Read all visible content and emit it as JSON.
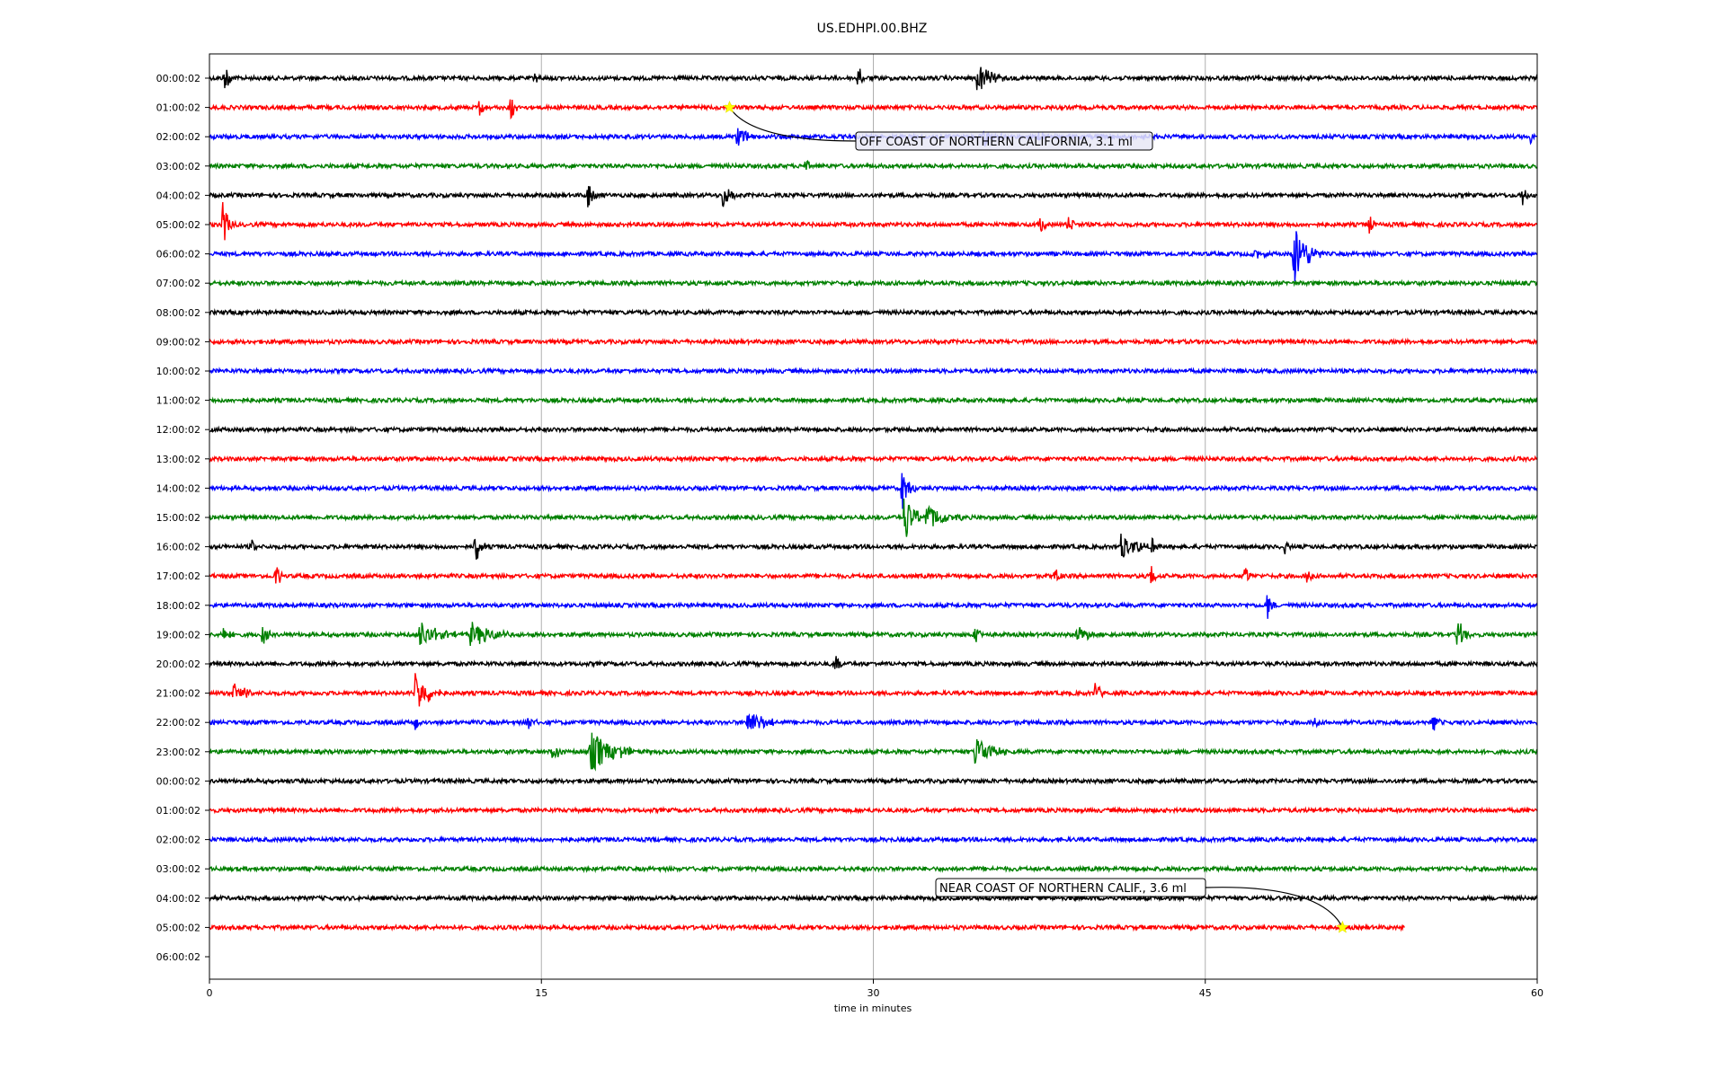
{
  "chart_data": {
    "type": "line",
    "title": "US.EDHPI.00.BHZ",
    "xlabel": "time in minutes",
    "ylabel": "",
    "xlim": [
      0,
      60
    ],
    "x_ticks": [
      "0",
      "15",
      "30",
      "45",
      "60"
    ],
    "grid": "vertical",
    "colors": [
      "#000000",
      "#ff0000",
      "#0000ff",
      "#008000"
    ],
    "row_labels": [
      "00:00:02",
      "01:00:02",
      "02:00:02",
      "03:00:02",
      "04:00:02",
      "05:00:02",
      "06:00:02",
      "07:00:02",
      "08:00:02",
      "09:00:02",
      "10:00:02",
      "11:00:02",
      "12:00:02",
      "13:00:02",
      "14:00:02",
      "15:00:02",
      "16:00:02",
      "17:00:02",
      "18:00:02",
      "19:00:02",
      "20:00:02",
      "21:00:02",
      "22:00:02",
      "23:00:02",
      "00:00:02",
      "01:00:02",
      "02:00:02",
      "03:00:02",
      "04:00:02",
      "05:00:02",
      "06:00:02"
    ],
    "last_trace_end_minute": 54,
    "events": [
      {
        "row": 0,
        "minute": 0.7,
        "amp": 1.0,
        "dur": 0.5
      },
      {
        "row": 0,
        "minute": 14.7,
        "amp": 0.5,
        "dur": 0.3
      },
      {
        "row": 0,
        "minute": 29.3,
        "amp": 1.0,
        "dur": 0.4
      },
      {
        "row": 0,
        "minute": 34.7,
        "amp": 1.1,
        "dur": 1.2
      },
      {
        "row": 1,
        "minute": 12.2,
        "amp": 0.6,
        "dur": 0.6
      },
      {
        "row": 1,
        "minute": 13.6,
        "amp": 1.0,
        "dur": 0.4
      },
      {
        "row": 2,
        "minute": 23.8,
        "amp": 0.8,
        "dur": 1.2
      },
      {
        "row": 2,
        "minute": 35.0,
        "amp": 0.7,
        "dur": 0.8
      },
      {
        "row": 2,
        "minute": 37.5,
        "amp": 0.6,
        "dur": 0.4
      },
      {
        "row": 2,
        "minute": 59.7,
        "amp": 0.5,
        "dur": 0.3
      },
      {
        "row": 3,
        "minute": 26.9,
        "amp": 0.6,
        "dur": 0.4
      },
      {
        "row": 4,
        "minute": 17.1,
        "amp": 1.1,
        "dur": 0.4
      },
      {
        "row": 4,
        "minute": 23.2,
        "amp": 1.4,
        "dur": 0.6
      },
      {
        "row": 4,
        "minute": 59.3,
        "amp": 1.0,
        "dur": 0.3
      },
      {
        "row": 5,
        "minute": 0.6,
        "amp": 1.7,
        "dur": 0.6
      },
      {
        "row": 5,
        "minute": 37.5,
        "amp": 0.8,
        "dur": 0.4
      },
      {
        "row": 5,
        "minute": 38.8,
        "amp": 0.7,
        "dur": 0.6
      },
      {
        "row": 5,
        "minute": 52.4,
        "amp": 0.8,
        "dur": 0.3
      },
      {
        "row": 6,
        "minute": 47.2,
        "amp": 0.6,
        "dur": 0.6
      },
      {
        "row": 6,
        "minute": 49.0,
        "amp": 2.4,
        "dur": 1.2
      },
      {
        "row": 14,
        "minute": 31.3,
        "amp": 1.5,
        "dur": 0.6
      },
      {
        "row": 15,
        "minute": 31.4,
        "amp": 2.0,
        "dur": 0.8
      },
      {
        "row": 15,
        "minute": 32.4,
        "amp": 1.0,
        "dur": 1.6
      },
      {
        "row": 16,
        "minute": 1.9,
        "amp": 0.6,
        "dur": 0.4
      },
      {
        "row": 16,
        "minute": 12.0,
        "amp": 1.3,
        "dur": 0.5
      },
      {
        "row": 16,
        "minute": 41.2,
        "amp": 1.0,
        "dur": 1.4
      },
      {
        "row": 16,
        "minute": 42.6,
        "amp": 0.8,
        "dur": 0.3
      },
      {
        "row": 16,
        "minute": 48.6,
        "amp": 0.6,
        "dur": 0.3
      },
      {
        "row": 17,
        "minute": 3.0,
        "amp": 1.0,
        "dur": 0.4
      },
      {
        "row": 17,
        "minute": 38.2,
        "amp": 0.9,
        "dur": 0.3
      },
      {
        "row": 17,
        "minute": 42.5,
        "amp": 1.1,
        "dur": 0.4
      },
      {
        "row": 17,
        "minute": 46.8,
        "amp": 0.9,
        "dur": 0.3
      },
      {
        "row": 17,
        "minute": 49.6,
        "amp": 0.7,
        "dur": 0.3
      },
      {
        "row": 18,
        "minute": 47.8,
        "amp": 1.0,
        "dur": 0.5
      },
      {
        "row": 19,
        "minute": 0.6,
        "amp": 0.6,
        "dur": 0.6
      },
      {
        "row": 19,
        "minute": 2.4,
        "amp": 0.8,
        "dur": 0.4
      },
      {
        "row": 19,
        "minute": 9.5,
        "amp": 1.0,
        "dur": 1.6
      },
      {
        "row": 19,
        "minute": 11.8,
        "amp": 0.9,
        "dur": 2.0
      },
      {
        "row": 19,
        "minute": 34.6,
        "amp": 0.8,
        "dur": 0.4
      },
      {
        "row": 19,
        "minute": 39.2,
        "amp": 0.8,
        "dur": 0.8
      },
      {
        "row": 19,
        "minute": 56.4,
        "amp": 1.2,
        "dur": 0.6
      },
      {
        "row": 20,
        "minute": 28.3,
        "amp": 0.9,
        "dur": 0.3
      },
      {
        "row": 21,
        "minute": 1.1,
        "amp": 0.8,
        "dur": 1.0
      },
      {
        "row": 21,
        "minute": 9.3,
        "amp": 1.6,
        "dur": 1.2
      },
      {
        "row": 21,
        "minute": 40.0,
        "amp": 1.0,
        "dur": 0.4
      },
      {
        "row": 22,
        "minute": 9.3,
        "amp": 0.6,
        "dur": 0.4
      },
      {
        "row": 22,
        "minute": 14.4,
        "amp": 0.6,
        "dur": 0.4
      },
      {
        "row": 22,
        "minute": 24.3,
        "amp": 1.1,
        "dur": 1.4
      },
      {
        "row": 22,
        "minute": 49.9,
        "amp": 0.6,
        "dur": 0.3
      },
      {
        "row": 22,
        "minute": 55.3,
        "amp": 0.7,
        "dur": 0.4
      },
      {
        "row": 23,
        "minute": 15.5,
        "amp": 0.7,
        "dur": 0.6
      },
      {
        "row": 23,
        "minute": 17.2,
        "amp": 1.5,
        "dur": 2.2
      },
      {
        "row": 23,
        "minute": 34.6,
        "amp": 1.2,
        "dur": 1.4
      }
    ],
    "annotations": [
      {
        "text": "OFF COAST OF NORTHERN CALIFORNIA, 3.1 ml",
        "row": 1,
        "minute": 23.5
      },
      {
        "text": "NEAR COAST OF NORTHERN CALIF., 3.6 ml",
        "row": 29,
        "minute": 51.2
      }
    ]
  }
}
